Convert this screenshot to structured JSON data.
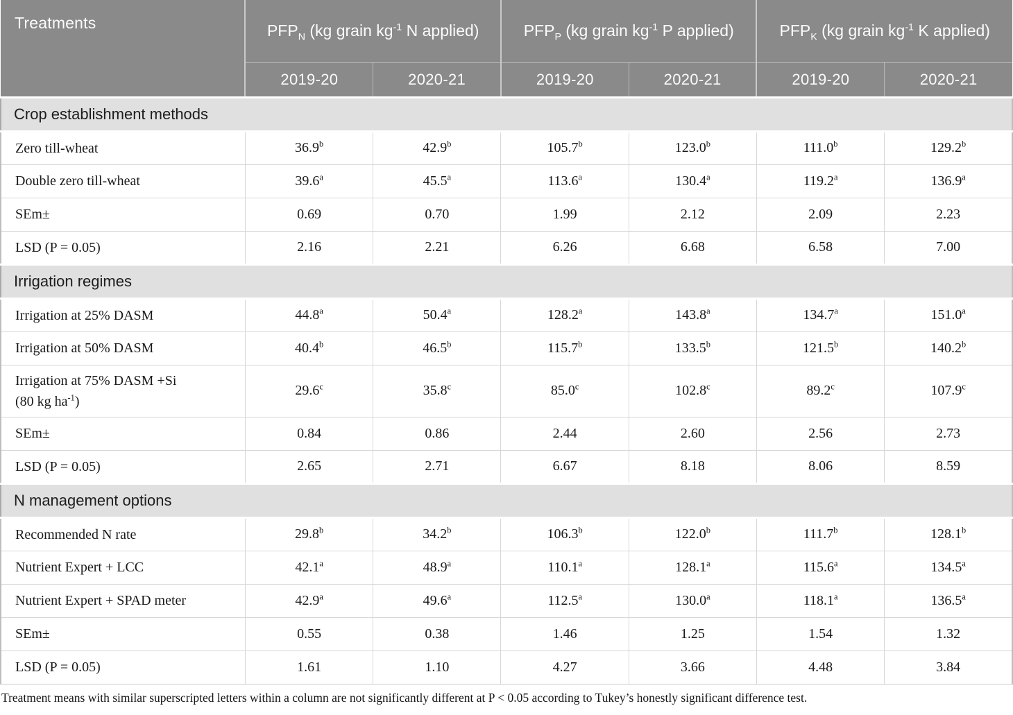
{
  "colors": {
    "header_bg": "#8a8a8a",
    "header_text": "#fbfbfb",
    "section_bg": "#e0e0e0",
    "cell_border": "#d7d7d7",
    "outer_border": "#bdbdbd",
    "data_text": "#1a1a1a"
  },
  "header": {
    "treatments": "Treatments",
    "groups": [
      {
        "name": "PFP",
        "sub": "N",
        "desc_pre": "(kg grain kg",
        "desc_sup": "-1",
        "desc_post": "N applied)"
      },
      {
        "name": "PFP",
        "sub": "P",
        "desc_pre": "(kg grain kg",
        "desc_sup": "-1",
        "desc_post": "P applied)"
      },
      {
        "name": "PFP",
        "sub": "K",
        "desc_pre": "(kg grain kg",
        "desc_sup": "-1",
        "desc_post": "K applied)"
      }
    ],
    "year_cols": [
      "2019-20",
      "2020-21"
    ]
  },
  "sections": [
    {
      "title": "Crop establishment methods",
      "rows": [
        {
          "label": "Zero till-wheat",
          "cells": [
            {
              "v": "36.9",
              "sup": "b"
            },
            {
              "v": "42.9",
              "sup": "b"
            },
            {
              "v": "105.7",
              "sup": "b"
            },
            {
              "v": "123.0",
              "sup": "b"
            },
            {
              "v": "111.0",
              "sup": "b"
            },
            {
              "v": "129.2",
              "sup": "b"
            }
          ]
        },
        {
          "label": "Double zero till-wheat",
          "cells": [
            {
              "v": "39.6",
              "sup": "a"
            },
            {
              "v": "45.5",
              "sup": "a"
            },
            {
              "v": "113.6",
              "sup": "a"
            },
            {
              "v": "130.4",
              "sup": "a"
            },
            {
              "v": "119.2",
              "sup": "a"
            },
            {
              "v": "136.9",
              "sup": "a"
            }
          ]
        },
        {
          "label": "SEm±",
          "cells": [
            {
              "v": "0.69",
              "sup": ""
            },
            {
              "v": "0.70",
              "sup": ""
            },
            {
              "v": "1.99",
              "sup": ""
            },
            {
              "v": "2.12",
              "sup": ""
            },
            {
              "v": "2.09",
              "sup": ""
            },
            {
              "v": "2.23",
              "sup": ""
            }
          ]
        },
        {
          "label": "LSD (P = 0.05)",
          "cells": [
            {
              "v": "2.16",
              "sup": ""
            },
            {
              "v": "2.21",
              "sup": ""
            },
            {
              "v": "6.26",
              "sup": ""
            },
            {
              "v": "6.68",
              "sup": ""
            },
            {
              "v": "6.58",
              "sup": ""
            },
            {
              "v": "7.00",
              "sup": ""
            }
          ]
        }
      ]
    },
    {
      "title": "Irrigation regimes",
      "rows": [
        {
          "label": "Irrigation at 25% DASM",
          "cells": [
            {
              "v": "44.8",
              "sup": "a"
            },
            {
              "v": "50.4",
              "sup": "a"
            },
            {
              "v": "128.2",
              "sup": "a"
            },
            {
              "v": "143.8",
              "sup": "a"
            },
            {
              "v": "134.7",
              "sup": "a"
            },
            {
              "v": "151.0",
              "sup": "a"
            }
          ]
        },
        {
          "label": "Irrigation at 50% DASM",
          "cells": [
            {
              "v": "40.4",
              "sup": "b"
            },
            {
              "v": "46.5",
              "sup": "b"
            },
            {
              "v": "115.7",
              "sup": "b"
            },
            {
              "v": "133.5",
              "sup": "b"
            },
            {
              "v": "121.5",
              "sup": "b"
            },
            {
              "v": "140.2",
              "sup": "b"
            }
          ]
        },
        {
          "label": "Irrigation at 75% DASM +Si",
          "label2": {
            "pre": "(80 kg ha",
            "sup": "-1",
            "post": ")"
          },
          "cells": [
            {
              "v": "29.6",
              "sup": "c"
            },
            {
              "v": "35.8",
              "sup": "c"
            },
            {
              "v": "85.0",
              "sup": "c"
            },
            {
              "v": "102.8",
              "sup": "c"
            },
            {
              "v": "89.2",
              "sup": "c"
            },
            {
              "v": "107.9",
              "sup": "c"
            }
          ]
        },
        {
          "label": "SEm±",
          "cells": [
            {
              "v": "0.84",
              "sup": ""
            },
            {
              "v": "0.86",
              "sup": ""
            },
            {
              "v": "2.44",
              "sup": ""
            },
            {
              "v": "2.60",
              "sup": ""
            },
            {
              "v": "2.56",
              "sup": ""
            },
            {
              "v": "2.73",
              "sup": ""
            }
          ]
        },
        {
          "label": "LSD (P = 0.05)",
          "cells": [
            {
              "v": "2.65",
              "sup": ""
            },
            {
              "v": "2.71",
              "sup": ""
            },
            {
              "v": "6.67",
              "sup": ""
            },
            {
              "v": "8.18",
              "sup": ""
            },
            {
              "v": "8.06",
              "sup": ""
            },
            {
              "v": "8.59",
              "sup": ""
            }
          ]
        }
      ]
    },
    {
      "title": "N management options",
      "rows": [
        {
          "label": "Recommended N rate",
          "cells": [
            {
              "v": "29.8",
              "sup": "b"
            },
            {
              "v": "34.2",
              "sup": "b"
            },
            {
              "v": "106.3",
              "sup": "b"
            },
            {
              "v": "122.0",
              "sup": "b"
            },
            {
              "v": "111.7",
              "sup": "b"
            },
            {
              "v": "128.1",
              "sup": "b"
            }
          ]
        },
        {
          "label": "Nutrient Expert + LCC",
          "cells": [
            {
              "v": "42.1",
              "sup": "a"
            },
            {
              "v": "48.9",
              "sup": "a"
            },
            {
              "v": "110.1",
              "sup": "a"
            },
            {
              "v": "128.1",
              "sup": "a"
            },
            {
              "v": "115.6",
              "sup": "a"
            },
            {
              "v": "134.5",
              "sup": "a"
            }
          ]
        },
        {
          "label": "Nutrient Expert + SPAD meter",
          "cells": [
            {
              "v": "42.9",
              "sup": "a"
            },
            {
              "v": "49.6",
              "sup": "a"
            },
            {
              "v": "112.5",
              "sup": "a"
            },
            {
              "v": "130.0",
              "sup": "a"
            },
            {
              "v": "118.1",
              "sup": "a"
            },
            {
              "v": "136.5",
              "sup": "a"
            }
          ]
        },
        {
          "label": "SEm±",
          "cells": [
            {
              "v": "0.55",
              "sup": ""
            },
            {
              "v": "0.38",
              "sup": ""
            },
            {
              "v": "1.46",
              "sup": ""
            },
            {
              "v": "1.25",
              "sup": ""
            },
            {
              "v": "1.54",
              "sup": ""
            },
            {
              "v": "1.32",
              "sup": ""
            }
          ]
        },
        {
          "label": "LSD (P = 0.05)",
          "cells": [
            {
              "v": "1.61",
              "sup": ""
            },
            {
              "v": "1.10",
              "sup": ""
            },
            {
              "v": "4.27",
              "sup": ""
            },
            {
              "v": "3.66",
              "sup": ""
            },
            {
              "v": "4.48",
              "sup": ""
            },
            {
              "v": "3.84",
              "sup": ""
            }
          ]
        }
      ]
    }
  ],
  "footnote": "Treatment means with similar superscripted letters within a column are not significantly different at P < 0.05 according to Tukey’s honestly significant difference test."
}
